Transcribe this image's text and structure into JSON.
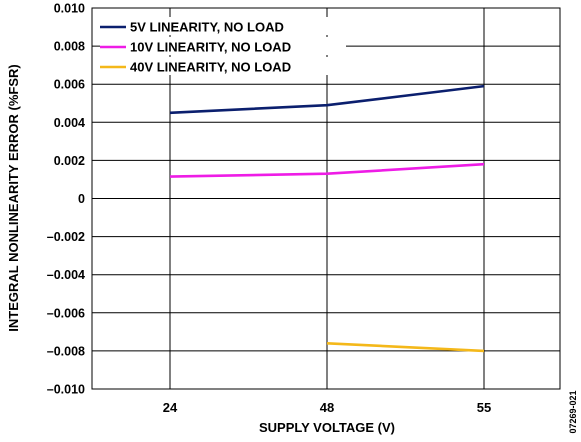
{
  "chart_data": {
    "type": "line",
    "xlabel": "SUPPLY VOLTAGE (V)",
    "ylabel": "INTEGRAL NONLINEARITY ERROR (%FSR)",
    "categories": [
      "24",
      "48",
      "55"
    ],
    "ylim": [
      -0.01,
      0.01
    ],
    "yticks": [
      "0.010",
      "0.008",
      "0.006",
      "0.004",
      "0.002",
      "0",
      "–0.002",
      "–0.004",
      "–0.006",
      "–0.008",
      "–0.010"
    ],
    "grid": true,
    "legend_position": "top-left",
    "series": [
      {
        "name": "5V LINEARITY, NO LOAD",
        "color": "#0b1f6e",
        "x": [
          24,
          48,
          55
        ],
        "y": [
          0.0045,
          0.0049,
          0.0059
        ]
      },
      {
        "name": "10V LINEARITY, NO LOAD",
        "color": "#ee1ce6",
        "x": [
          24,
          48,
          55
        ],
        "y": [
          0.00115,
          0.0013,
          0.0018
        ]
      },
      {
        "name": "40V LINEARITY, NO LOAD",
        "color": "#f4b81a",
        "x": [
          48,
          55
        ],
        "y": [
          -0.0076,
          -0.008
        ]
      }
    ],
    "annotation": "07269-021"
  }
}
